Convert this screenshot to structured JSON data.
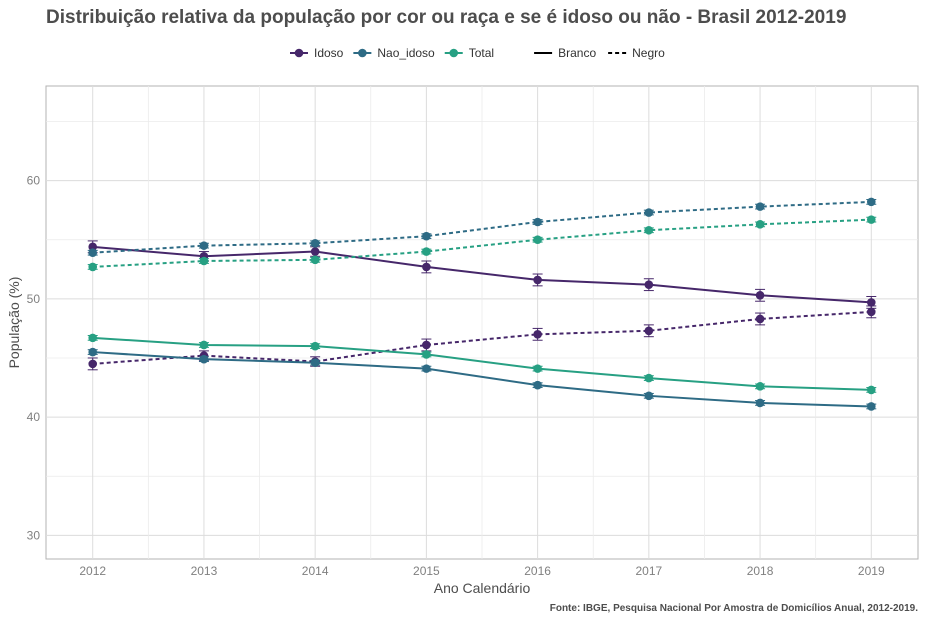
{
  "chart_data": {
    "type": "line",
    "title": "Distribuição relativa da população por cor ou raça e se é idoso ou não - Brasil 2012-2019",
    "xlabel": "Ano Calendário",
    "ylabel": "População (%)",
    "caption": "Fonte: IBGE, Pesquisa Nacional Por Amostra de Domicílios Anual, 2012-2019.",
    "x": [
      2012,
      2013,
      2014,
      2015,
      2016,
      2017,
      2018,
      2019
    ],
    "x_tick_labels": [
      "2012",
      "2013",
      "2014",
      "2015",
      "2016",
      "2017",
      "2018",
      "2019"
    ],
    "ylim": [
      28,
      68
    ],
    "y_ticks": [
      30,
      40,
      50,
      60
    ],
    "y_tick_labels": [
      "30",
      "40",
      "50",
      "60"
    ],
    "grid": true,
    "legend_position": "top",
    "legend_color": [
      {
        "label": "Idoso",
        "color": "#46276a"
      },
      {
        "label": "Nao_idoso",
        "color": "#2e6b85"
      },
      {
        "label": "Total",
        "color": "#27a083"
      }
    ],
    "legend_linetype": [
      {
        "label": "Branco",
        "dash": "solid"
      },
      {
        "label": "Negro",
        "dash": "dashed"
      }
    ],
    "series": [
      {
        "group": "Idoso",
        "linetype": "Branco",
        "color": "#46276a",
        "dash": "solid",
        "values": [
          54.4,
          53.6,
          54.0,
          52.7,
          51.6,
          51.2,
          50.3,
          49.7
        ],
        "error": [
          0.5,
          0.4,
          0.4,
          0.5,
          0.5,
          0.5,
          0.5,
          0.5
        ]
      },
      {
        "group": "Idoso",
        "linetype": "Negro",
        "color": "#46276a",
        "dash": "dashed",
        "values": [
          44.5,
          45.2,
          44.7,
          46.1,
          47.0,
          47.3,
          48.3,
          48.9
        ],
        "error": [
          0.5,
          0.4,
          0.4,
          0.5,
          0.5,
          0.5,
          0.5,
          0.5
        ]
      },
      {
        "group": "Nao_idoso",
        "linetype": "Branco",
        "color": "#2e6b85",
        "dash": "solid",
        "values": [
          45.5,
          44.9,
          44.6,
          44.1,
          42.7,
          41.8,
          41.2,
          40.9
        ],
        "error": [
          0.2,
          0.2,
          0.2,
          0.2,
          0.2,
          0.2,
          0.2,
          0.2
        ]
      },
      {
        "group": "Nao_idoso",
        "linetype": "Negro",
        "color": "#2e6b85",
        "dash": "dashed",
        "values": [
          53.9,
          54.5,
          54.7,
          55.3,
          56.5,
          57.3,
          57.8,
          58.2
        ],
        "error": [
          0.2,
          0.2,
          0.2,
          0.2,
          0.2,
          0.2,
          0.2,
          0.2
        ]
      },
      {
        "group": "Total",
        "linetype": "Branco",
        "color": "#27a083",
        "dash": "solid",
        "values": [
          46.7,
          46.1,
          46.0,
          45.3,
          44.1,
          43.3,
          42.6,
          42.3
        ],
        "error": [
          0.2,
          0.2,
          0.2,
          0.2,
          0.2,
          0.2,
          0.2,
          0.2
        ]
      },
      {
        "group": "Total",
        "linetype": "Negro",
        "color": "#27a083",
        "dash": "dashed",
        "values": [
          52.7,
          53.2,
          53.3,
          54.0,
          55.0,
          55.8,
          56.3,
          56.7
        ],
        "error": [
          0.2,
          0.2,
          0.2,
          0.2,
          0.2,
          0.2,
          0.2,
          0.2
        ]
      }
    ]
  }
}
